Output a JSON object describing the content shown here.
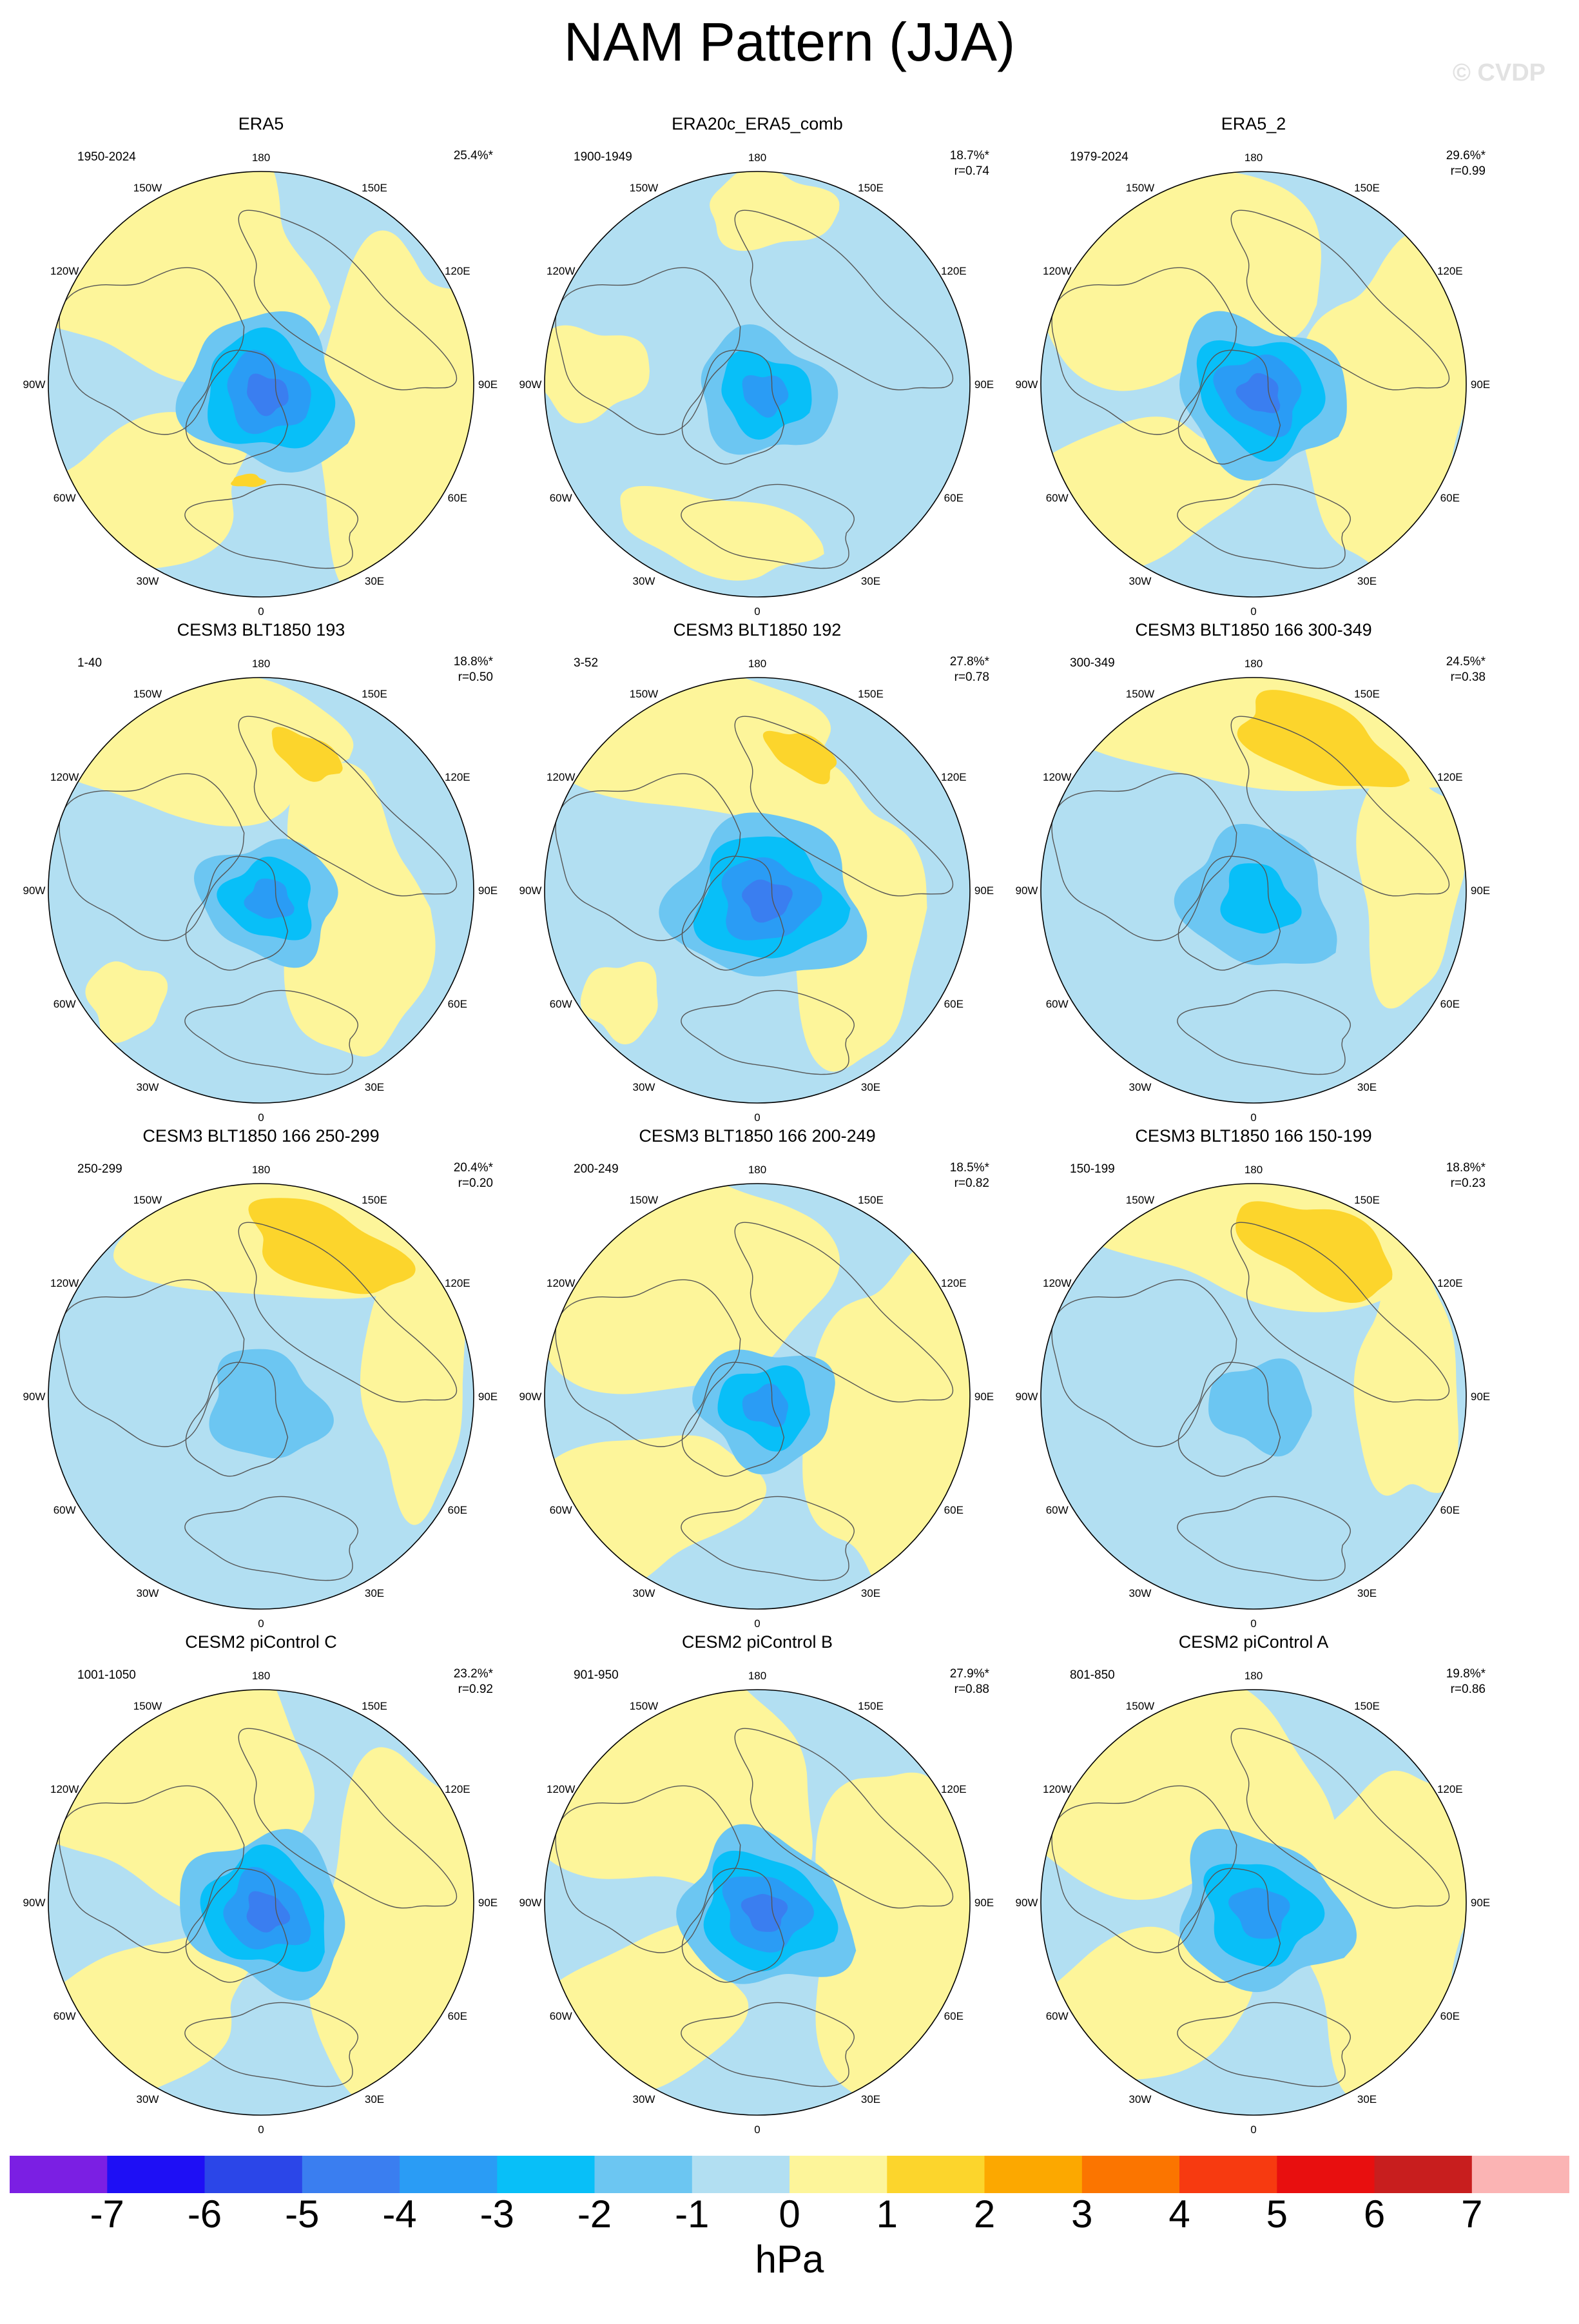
{
  "title": "NAM Pattern (JJA)",
  "watermark": "© CVDP",
  "colors": {
    "land_outline": "#555555",
    "map_border": "#000000"
  },
  "lon_labels": [
    "180",
    "150E",
    "120E",
    "90E",
    "60E",
    "30E",
    "0",
    "30W",
    "60W",
    "90W",
    "120W",
    "150W"
  ],
  "panels": [
    {
      "title": "ERA5",
      "period": "1950-2024",
      "pct": "25.4%*",
      "r": "",
      "pattern": {
        "center": -4,
        "dir": 0.55,
        "spread": 1.0,
        "extra": "warm_nice"
      }
    },
    {
      "title": "ERA20c_ERA5_comb",
      "period": "1900-1949",
      "pct": "18.7%*",
      "r": "r=0.74",
      "pattern": {
        "center": -3,
        "dir": 0.4,
        "spread": 0.8,
        "extra": "cool_wide"
      }
    },
    {
      "title": "ERA5_2",
      "period": "1979-2024",
      "pct": "29.6%*",
      "r": "r=0.99",
      "pattern": {
        "center": -4,
        "dir": 0.5,
        "spread": 1.0,
        "extra": "warm_ring"
      }
    },
    {
      "title": "CESM3 BLT1850 193",
      "period": "1-40",
      "pct": "18.8%*",
      "r": "r=0.50",
      "pattern": {
        "center": -3,
        "dir": 0.3,
        "spread": 0.8,
        "extra": "warm_pacific_small"
      }
    },
    {
      "title": "CESM3 BLT1850 192",
      "period": "3-52",
      "pct": "27.8%*",
      "r": "r=0.78",
      "pattern": {
        "center": -4,
        "dir": 0.1,
        "spread": 1.1,
        "extra": "warm_pacific_small"
      }
    },
    {
      "title": "CESM3 BLT1850 166 300-349",
      "period": "300-349",
      "pct": "24.5%*",
      "r": "r=0.38",
      "pattern": {
        "center": -2,
        "dir": 0.6,
        "spread": 0.9,
        "extra": "warm_pacific_big"
      }
    },
    {
      "title": "CESM3 BLT1850 166 250-299",
      "period": "250-299",
      "pct": "20.4%*",
      "r": "r=0.20",
      "pattern": {
        "center": -1,
        "dir": 0.6,
        "spread": 0.7,
        "extra": "warm_pacific_big"
      }
    },
    {
      "title": "CESM3 BLT1850 166 200-249",
      "period": "200-249",
      "pct": "18.5%*",
      "r": "r=0.82",
      "pattern": {
        "center": -3,
        "dir": 0.2,
        "spread": 0.8,
        "extra": "warm_ring"
      }
    },
    {
      "title": "CESM3 BLT1850 166 150-199",
      "period": "150-199",
      "pct": "18.8%*",
      "r": "r=0.23",
      "pattern": {
        "center": -1,
        "dir": 0.2,
        "spread": 0.6,
        "extra": "warm_pacific_big"
      }
    },
    {
      "title": "CESM2 piControl C",
      "period": "1001-1050",
      "pct": "23.2%*",
      "r": "r=0.92",
      "pattern": {
        "center": -4,
        "dir": 0.6,
        "spread": 1.0,
        "extra": "warm_ring"
      }
    },
    {
      "title": "CESM2 piControl B",
      "period": "901-950",
      "pct": "27.9%*",
      "r": "r=0.88",
      "pattern": {
        "center": -4,
        "dir": 0.4,
        "spread": 1.0,
        "extra": "warm_ring"
      }
    },
    {
      "title": "CESM2 piControl A",
      "period": "801-850",
      "pct": "19.8%*",
      "r": "r=0.86",
      "pattern": {
        "center": -3,
        "dir": 0.5,
        "spread": 1.0,
        "extra": "warm_ring"
      }
    }
  ],
  "colorbar": {
    "levels": [
      "-7",
      "-6",
      "-5",
      "-4",
      "-3",
      "-2",
      "-1",
      "0",
      "1",
      "2",
      "3",
      "4",
      "5",
      "6",
      "7"
    ],
    "colors": [
      "#7b1fe3",
      "#1e0ff5",
      "#2b46e8",
      "#3a7ef0",
      "#2a9cf5",
      "#08bff8",
      "#6cc6f2",
      "#b2dff2",
      "#fdf59a",
      "#fcd52c",
      "#fca800",
      "#fb7500",
      "#f73a10",
      "#e80f0f",
      "#c81e1e",
      "#fbb4b4"
    ],
    "units": "hPa"
  },
  "chart_data": {
    "type": "heatmap",
    "title": "NAM Pattern (JJA)",
    "units": "hPa",
    "contour_levels": [
      -7,
      -6,
      -5,
      -4,
      -3,
      -2,
      -1,
      0,
      1,
      2,
      3,
      4,
      5,
      6,
      7
    ],
    "panels": [
      {
        "name": "ERA5",
        "period": "1950-2024",
        "variance_explained": "25.4%*",
        "pattern_correlation": null,
        "arctic_center_min_hPa": -4
      },
      {
        "name": "ERA20c_ERA5_comb",
        "period": "1900-1949",
        "variance_explained": "18.7%*",
        "pattern_correlation": 0.74,
        "arctic_center_min_hPa": -3
      },
      {
        "name": "ERA5_2",
        "period": "1979-2024",
        "variance_explained": "29.6%*",
        "pattern_correlation": 0.99,
        "arctic_center_min_hPa": -4
      },
      {
        "name": "CESM3 BLT1850 193",
        "period": "1-40",
        "variance_explained": "18.8%*",
        "pattern_correlation": 0.5,
        "arctic_center_min_hPa": -3
      },
      {
        "name": "CESM3 BLT1850 192",
        "period": "3-52",
        "variance_explained": "27.8%*",
        "pattern_correlation": 0.78,
        "arctic_center_min_hPa": -4
      },
      {
        "name": "CESM3 BLT1850 166 300-349",
        "period": "300-349",
        "variance_explained": "24.5%*",
        "pattern_correlation": 0.38,
        "arctic_center_min_hPa": -2
      },
      {
        "name": "CESM3 BLT1850 166 250-299",
        "period": "250-299",
        "variance_explained": "20.4%*",
        "pattern_correlation": 0.2,
        "arctic_center_min_hPa": -1
      },
      {
        "name": "CESM3 BLT1850 166 200-249",
        "period": "200-249",
        "variance_explained": "18.5%*",
        "pattern_correlation": 0.82,
        "arctic_center_min_hPa": -3
      },
      {
        "name": "CESM3 BLT1850 166 150-199",
        "period": "150-199",
        "variance_explained": "18.8%*",
        "pattern_correlation": 0.23,
        "arctic_center_min_hPa": -1
      },
      {
        "name": "CESM2 piControl C",
        "period": "1001-1050",
        "variance_explained": "23.2%*",
        "pattern_correlation": 0.92,
        "arctic_center_min_hPa": -4
      },
      {
        "name": "CESM2 piControl B",
        "period": "901-950",
        "variance_explained": "27.9%*",
        "pattern_correlation": 0.88,
        "arctic_center_min_hPa": -4
      },
      {
        "name": "CESM2 piControl A",
        "period": "801-850",
        "variance_explained": "19.8%*",
        "pattern_correlation": 0.86,
        "arctic_center_min_hPa": -3
      }
    ]
  }
}
